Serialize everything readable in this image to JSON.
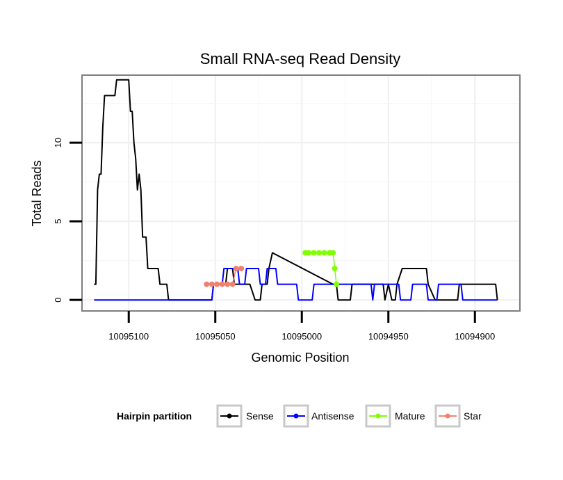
{
  "chart_data": {
    "type": "line",
    "title": "Small RNA-seq Read Density",
    "xlabel": "Genomic Position",
    "ylabel": "Total Reads",
    "xlim": [
      10095127,
      10094874
    ],
    "ylim": [
      -0.7,
      14.3
    ],
    "x_reversed": true,
    "x_ticks": [
      10095100,
      10095050,
      10095000,
      10094950,
      10094900
    ],
    "x_tick_labels": [
      "10095100",
      "10095050",
      "10095000",
      "10094950",
      "10094900"
    ],
    "y_ticks": [
      0,
      5,
      10
    ],
    "y_tick_labels": [
      "0",
      "5",
      "10"
    ],
    "grid": true,
    "legend": {
      "title": "Hairpin partition",
      "position": "bottom",
      "entries": [
        {
          "name": "Sense",
          "color": "#000000"
        },
        {
          "name": "Antisense",
          "color": "#0000ff"
        },
        {
          "name": "Mature",
          "color": "#7fff00"
        },
        {
          "name": "Star",
          "color": "#f08070"
        }
      ]
    },
    "series": [
      {
        "name": "Sense",
        "color": "#000000",
        "points": [
          [
            10095120,
            1
          ],
          [
            10095119,
            1
          ],
          [
            10095118,
            7
          ],
          [
            10095117,
            8
          ],
          [
            10095116,
            8
          ],
          [
            10095115,
            11
          ],
          [
            10095114,
            13
          ],
          [
            10095110,
            13
          ],
          [
            10095108,
            13
          ],
          [
            10095107,
            14
          ],
          [
            10095101,
            14
          ],
          [
            10095100,
            14
          ],
          [
            10095099,
            12
          ],
          [
            10095098,
            12
          ],
          [
            10095097,
            10
          ],
          [
            10095096,
            9
          ],
          [
            10095095,
            7
          ],
          [
            10095094,
            8
          ],
          [
            10095093,
            7
          ],
          [
            10095092,
            4
          ],
          [
            10095090,
            4
          ],
          [
            10095089,
            2
          ],
          [
            10095083,
            2
          ],
          [
            10095082,
            1
          ],
          [
            10095078,
            1
          ],
          [
            10095077,
            0
          ],
          [
            10095052,
            0
          ],
          [
            10095051,
            1
          ],
          [
            10095044,
            1
          ],
          [
            10095043,
            2
          ],
          [
            10095040,
            2
          ],
          [
            10095039,
            1
          ],
          [
            10095031,
            1
          ],
          [
            10095030,
            1
          ],
          [
            10095027,
            0
          ],
          [
            10095024,
            0
          ],
          [
            10095023,
            1
          ],
          [
            10095020,
            1
          ],
          [
            10095019,
            2
          ],
          [
            10095017,
            3
          ],
          [
            10094982,
            1
          ],
          [
            10094980,
            1
          ],
          [
            10094979,
            0
          ],
          [
            10094972,
            0
          ],
          [
            10094971,
            1
          ],
          [
            10094953,
            1
          ],
          [
            10094952,
            0
          ],
          [
            10094950,
            1
          ],
          [
            10094948,
            0
          ],
          [
            10094946,
            0
          ],
          [
            10094945,
            1
          ],
          [
            10094942,
            2
          ],
          [
            10094928,
            2
          ],
          [
            10094927,
            1
          ],
          [
            10094923,
            0
          ],
          [
            10094910,
            0
          ],
          [
            10094909,
            1
          ],
          [
            10094888,
            1
          ],
          [
            10094887,
            0
          ]
        ]
      },
      {
        "name": "Antisense",
        "color": "#0000ff",
        "points": [
          [
            10095120,
            0
          ],
          [
            10095052,
            0
          ],
          [
            10095051,
            1
          ],
          [
            10095046,
            1
          ],
          [
            10095045,
            2
          ],
          [
            10095037,
            2
          ],
          [
            10095036,
            1
          ],
          [
            10095033,
            1
          ],
          [
            10095032,
            2
          ],
          [
            10095025,
            2
          ],
          [
            10095024,
            1
          ],
          [
            10095021,
            1
          ],
          [
            10095020,
            2
          ],
          [
            10095015,
            2
          ],
          [
            10095014,
            1
          ],
          [
            10095003,
            1
          ],
          [
            10095002,
            0
          ],
          [
            10094994,
            0
          ],
          [
            10094993,
            1
          ],
          [
            10094960,
            1
          ],
          [
            10094959,
            0
          ],
          [
            10094958,
            1
          ],
          [
            10094944,
            1
          ],
          [
            10094943,
            0
          ],
          [
            10094937,
            0
          ],
          [
            10094936,
            1
          ],
          [
            10094928,
            1
          ],
          [
            10094927,
            0
          ],
          [
            10094922,
            0
          ],
          [
            10094921,
            1
          ],
          [
            10094908,
            1
          ],
          [
            10094907,
            0
          ],
          [
            10094887,
            0
          ]
        ]
      },
      {
        "name": "Mature",
        "color": "#7fff00",
        "points": [
          [
            10094998,
            3
          ],
          [
            10094996,
            3
          ],
          [
            10094993,
            3
          ],
          [
            10094990,
            3
          ],
          [
            10094987,
            3
          ],
          [
            10094984,
            3
          ],
          [
            10094982,
            3
          ],
          [
            10094981,
            2
          ],
          [
            10094980,
            1
          ]
        ]
      },
      {
        "name": "Star",
        "color": "#f08070",
        "points": [
          [
            10095055,
            1
          ],
          [
            10095052,
            1
          ],
          [
            10095049,
            1
          ],
          [
            10095046,
            1
          ],
          [
            10095043,
            1
          ],
          [
            10095040,
            1
          ],
          [
            10095038,
            2
          ],
          [
            10095035,
            2
          ]
        ]
      }
    ]
  }
}
